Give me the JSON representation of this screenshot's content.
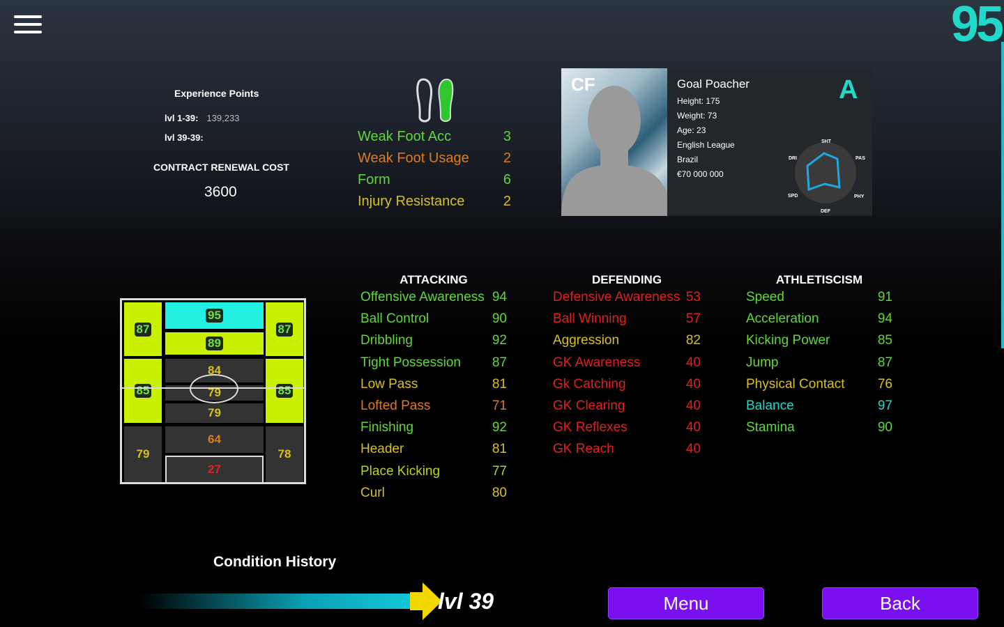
{
  "header": {
    "menu_icon": "hamburger-icon",
    "overall_rating": "95"
  },
  "experience": {
    "title": "Experience Points",
    "rows": [
      {
        "label": "lvl 1-39:",
        "value": "139,233"
      },
      {
        "label": "lvl 39-39:",
        "value": ""
      }
    ],
    "contract_label": "CONTRACT RENEWAL COST",
    "contract_value": "3600"
  },
  "traits": [
    {
      "label": "Weak Foot Acc",
      "value": "3",
      "color": "#5fd83a"
    },
    {
      "label": "Weak Foot Usage",
      "value": "2",
      "color": "#e07a20"
    },
    {
      "label": "Form",
      "value": "6",
      "color": "#5fd83a"
    },
    {
      "label": "Injury Resistance",
      "value": "2",
      "color": "#d8c020"
    }
  ],
  "card": {
    "position": "CF",
    "playstyle": "Goal Poacher",
    "height": "Height: 175",
    "weight": "Weight: 73",
    "age": "Age: 23",
    "league": "English League",
    "nationality": "Brazil",
    "value": "€70 000 000",
    "grade": "A",
    "radar_labels": [
      "SHT",
      "PAS",
      "PHY",
      "DEF",
      "SPD",
      "DRI"
    ]
  },
  "pitch": {
    "cf": "95",
    "ss": "89",
    "lwf": "87",
    "rwf": "87",
    "amf": "84",
    "lmf": "85",
    "rmf": "85",
    "cmf": "79",
    "dmf": "79",
    "cb": "64",
    "lb": "79",
    "rb": "78",
    "gk": "27"
  },
  "attacking": {
    "title": "ATTACKING",
    "stats": [
      {
        "label": "Offensive Awareness",
        "value": "94",
        "color": "#5fd83a"
      },
      {
        "label": "Ball Control",
        "value": "90",
        "color": "#5fd83a"
      },
      {
        "label": "Dribbling",
        "value": "92",
        "color": "#5fd83a"
      },
      {
        "label": "Tight Possession",
        "value": "87",
        "color": "#5fd83a"
      },
      {
        "label": "Low Pass",
        "value": "81",
        "color": "#d8c020"
      },
      {
        "label": "Lofted Pass",
        "value": "71",
        "color": "#e07a20"
      },
      {
        "label": "Finishing",
        "value": "92",
        "color": "#5fd83a"
      },
      {
        "label": "Header",
        "value": "81",
        "color": "#d8c020"
      },
      {
        "label": "Place Kicking",
        "value": "77",
        "color": "#c0d020"
      },
      {
        "label": "Curl",
        "value": "80",
        "color": "#d8c020"
      }
    ]
  },
  "defending": {
    "title": "DEFENDING",
    "stats": [
      {
        "label": "Defensive Awareness",
        "value": "53",
        "color": "#e02020"
      },
      {
        "label": "Ball Winning",
        "value": "57",
        "color": "#e02020"
      },
      {
        "label": "Aggression",
        "value": "82",
        "color": "#d8c020"
      },
      {
        "label": "GK Awareness",
        "value": "40",
        "color": "#e02020"
      },
      {
        "label": "Gk Catching",
        "value": "40",
        "color": "#e02020"
      },
      {
        "label": "GK Clearing",
        "value": "40",
        "color": "#e02020"
      },
      {
        "label": "GK Reflexes",
        "value": "40",
        "color": "#e02020"
      },
      {
        "label": "GK Reach",
        "value": "40",
        "color": "#e02020"
      }
    ]
  },
  "athleticism": {
    "title": "ATHLETISCISM",
    "stats": [
      {
        "label": "Speed",
        "value": "91",
        "color": "#5fd83a"
      },
      {
        "label": "Acceleration",
        "value": "94",
        "color": "#5fd83a"
      },
      {
        "label": "Kicking Power",
        "value": "85",
        "color": "#5fd83a"
      },
      {
        "label": "Jump",
        "value": "87",
        "color": "#5fd83a"
      },
      {
        "label": "Physical Contact",
        "value": "76",
        "color": "#d8c020"
      },
      {
        "label": "Balance",
        "value": "97",
        "color": "#22d8c8"
      },
      {
        "label": "Stamina",
        "value": "90",
        "color": "#5fd83a"
      }
    ]
  },
  "footer": {
    "condition_title": "Condition History",
    "level": "lvl 39",
    "menu_label": "Menu",
    "back_label": "Back"
  }
}
